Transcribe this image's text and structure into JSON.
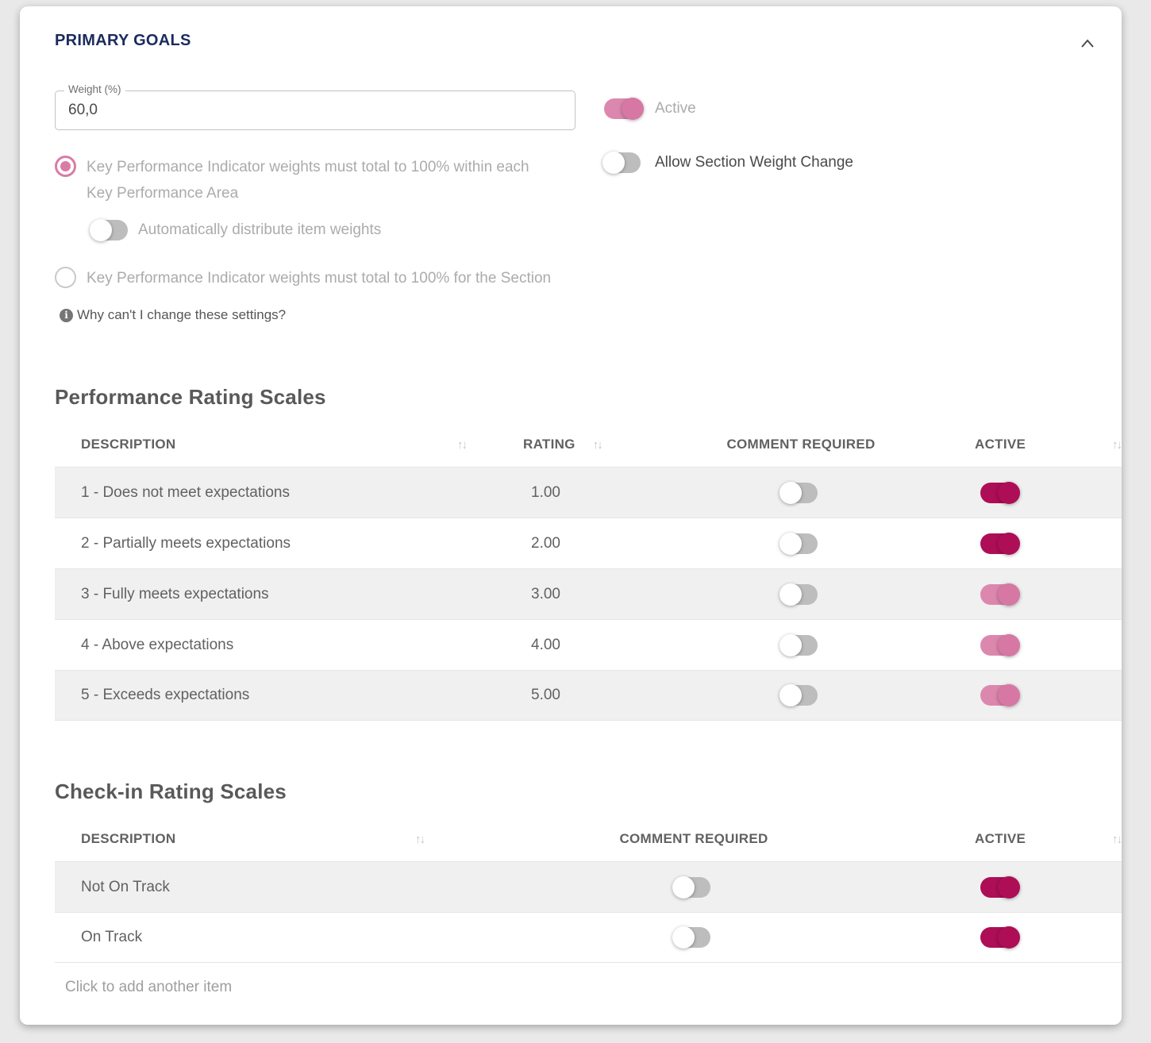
{
  "panel": {
    "title": "PRIMARY GOALS"
  },
  "settings": {
    "weight_field": {
      "label": "Weight (%)",
      "value": "60,0"
    },
    "active_toggle": {
      "label": "Active",
      "on": true,
      "enabled": false
    },
    "allow_section_weight_toggle": {
      "label": "Allow Section Weight Change",
      "on": false
    },
    "radio_kpa": {
      "label": "Key Performance Indicator weights must total to 100% within each Key Performance Area",
      "selected": true
    },
    "auto_distribute_toggle": {
      "label": "Automatically distribute item weights",
      "on": false
    },
    "radio_section": {
      "label": "Key Performance Indicator weights must total to 100% for the Section",
      "selected": false
    },
    "info_link": "Why can't I change these settings?"
  },
  "performance_table": {
    "title": "Performance Rating Scales",
    "columns": {
      "description": "DESCRIPTION",
      "rating": "RATING",
      "comment": "COMMENT REQUIRED",
      "active": "ACTIVE"
    },
    "rows": [
      {
        "description": "1 - Does not meet expectations",
        "rating": "1.00",
        "comment_required": false,
        "active": true,
        "active_variant": "strong"
      },
      {
        "description": "2 - Partially meets expectations",
        "rating": "2.00",
        "comment_required": false,
        "active": true,
        "active_variant": "strong"
      },
      {
        "description": "3 - Fully meets expectations",
        "rating": "3.00",
        "comment_required": false,
        "active": true,
        "active_variant": "muted"
      },
      {
        "description": "4 - Above expectations",
        "rating": "4.00",
        "comment_required": false,
        "active": true,
        "active_variant": "muted"
      },
      {
        "description": "5 - Exceeds expectations",
        "rating": "5.00",
        "comment_required": false,
        "active": true,
        "active_variant": "muted"
      }
    ]
  },
  "checkin_table": {
    "title": "Check-in Rating Scales",
    "columns": {
      "description": "DESCRIPTION",
      "comment": "COMMENT REQUIRED",
      "active": "ACTIVE"
    },
    "rows": [
      {
        "description": "Not On Track",
        "comment_required": false,
        "active": true,
        "active_variant": "strong"
      },
      {
        "description": "On Track",
        "comment_required": false,
        "active": true,
        "active_variant": "strong"
      }
    ],
    "add_item_label": "Click to add another item"
  },
  "icons": {
    "collapse": "chevron-up-icon",
    "sort": "sort-arrows-icon",
    "info": "info-icon"
  },
  "colors": {
    "title_navy": "#1b2b5e",
    "toggle_on_strong": "#ad0e55",
    "toggle_on_muted": "#d677a4",
    "toggle_off_track": "#bdbdbd",
    "row_alt_bg": "#f0f0f0",
    "radio_pink": "#d97ca7"
  }
}
